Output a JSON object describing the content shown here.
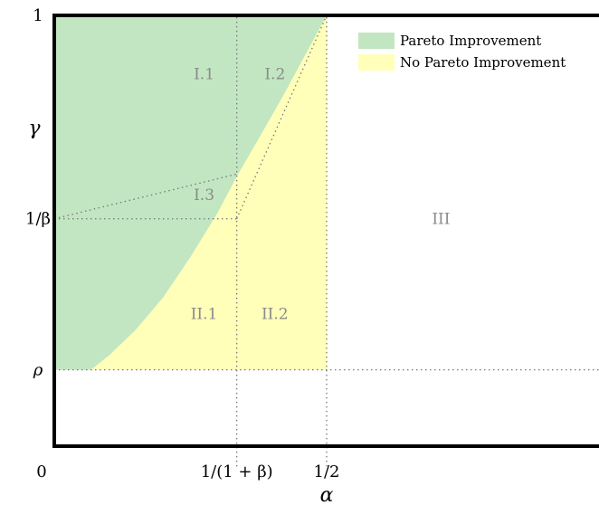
{
  "chart_data": {
    "type": "area",
    "title": "",
    "xlabel": "α",
    "ylabel": "γ",
    "xlim": [
      0,
      1
    ],
    "ylim": [
      0,
      1
    ],
    "parameters": {
      "rho": 0.12,
      "inv_beta": 0.495,
      "inv_one_plus_beta": 0.335,
      "half": 0.5
    },
    "x_ticks": [
      {
        "label": "0",
        "value": 0
      },
      {
        "label": "1/(1 + β)",
        "value": 0.335
      },
      {
        "label": "1/2",
        "value": 0.5
      }
    ],
    "y_ticks": [
      {
        "label": "ρ",
        "value": 0.12
      },
      {
        "label": "1/β",
        "value": 0.495
      },
      {
        "label": "1",
        "value": 1
      }
    ],
    "series": [
      {
        "name": "Pareto Improvement",
        "color": "#c2e6c2",
        "boundary_upper": "gamma = 1",
        "boundary_lower_points": [
          [
            0,
            0.12
          ],
          [
            0.067,
            0.12
          ],
          [
            0.1,
            0.155
          ],
          [
            0.15,
            0.22
          ],
          [
            0.2,
            0.3
          ],
          [
            0.25,
            0.4
          ],
          [
            0.3,
            0.51
          ],
          [
            0.335,
            0.6
          ],
          [
            0.38,
            0.705
          ],
          [
            0.42,
            0.8
          ],
          [
            0.46,
            0.9
          ],
          [
            0.5,
            1.0
          ]
        ]
      },
      {
        "name": "No Pareto Improvement",
        "color": "#ffffba",
        "x_range": [
          0.067,
          0.5
        ],
        "y_range": [
          0.12,
          1.0
        ]
      }
    ],
    "region_labels": [
      {
        "label": "I.1",
        "x": 0.275,
        "y": 0.855
      },
      {
        "label": "I.2",
        "x": 0.405,
        "y": 0.855
      },
      {
        "label": "I.3",
        "x": 0.275,
        "y": 0.555
      },
      {
        "label": "II.1",
        "x": 0.275,
        "y": 0.26
      },
      {
        "label": "II.2",
        "x": 0.405,
        "y": 0.26
      },
      {
        "label": "III",
        "x": 0.71,
        "y": 0.495
      }
    ],
    "guide_lines": [
      {
        "from": [
          0,
          0.495
        ],
        "to": [
          0.335,
          0.495
        ]
      },
      {
        "from": [
          0,
          0.495
        ],
        "to": [
          0.335,
          0.606
        ]
      },
      {
        "from": [
          0.335,
          0.495
        ],
        "to": [
          0.5,
          1.0
        ]
      },
      {
        "from": [
          0.335,
          -0.12
        ],
        "to": [
          0.335,
          1.0
        ]
      },
      {
        "from": [
          0.5,
          -0.12
        ],
        "to": [
          0.5,
          1.0
        ]
      },
      {
        "from": [
          0,
          0.12
        ],
        "to": [
          1.0,
          0.12
        ]
      }
    ],
    "legend_position": "top-right",
    "grid": false
  }
}
